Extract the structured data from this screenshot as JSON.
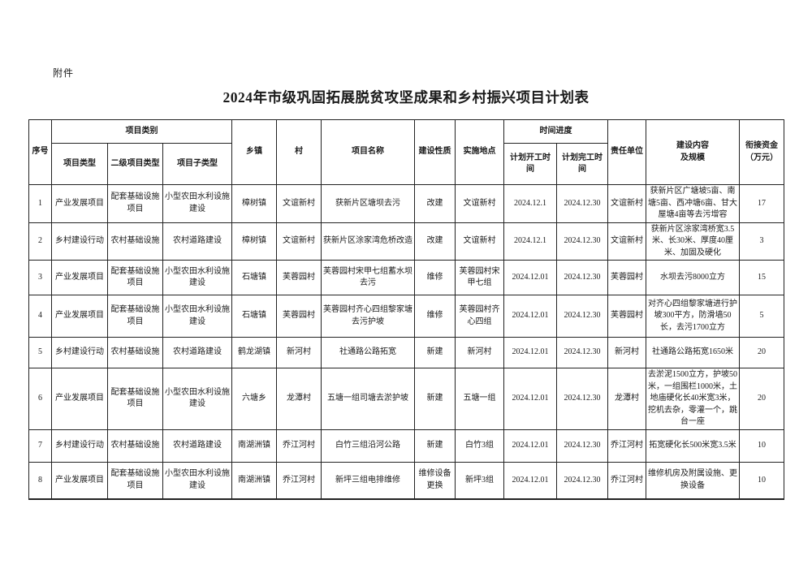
{
  "page": {
    "attachment_label": "附件",
    "title": "2024年市级巩固拓展脱贫攻坚成果和乡村振兴项目计划表"
  },
  "table": {
    "header": {
      "seq": "序号",
      "category_group": "项目类别",
      "project_type": "项目类型",
      "secondary_type": "二级项目类型",
      "sub_type": "项目子类型",
      "township": "乡镇",
      "village": "村",
      "project_name": "项目名称",
      "construction_nature": "建设性质",
      "implementation_site": "实施地点",
      "time_group": "时间进度",
      "planned_start": "计划开工时\n间",
      "planned_finish": "计划完工时\n间",
      "responsible_unit": "责任单位",
      "content_scale": "建设内容\n及规模",
      "funds": "衔接资金\n（万元）"
    },
    "rows": [
      [
        "1",
        "产业发展项目",
        "配套基础设施\n项目",
        "小型农田水利设施\n建设",
        "樟树镇",
        "文谊新村",
        "获新片区塘坝去污",
        "改建",
        "文谊新村",
        "2024.12.1",
        "2024.12.30",
        "文谊新村",
        "获新片区广塘坡5亩、南塘5亩、西冲塘6亩、甘大屋塘4亩等去污增容",
        "17"
      ],
      [
        "2",
        "乡村建设行动",
        "农村基础设施",
        "农村道路建设",
        "樟树镇",
        "文谊新村",
        "获新片区涂家湾危桥改造",
        "改建",
        "文谊新村",
        "2024.12.1",
        "2024.12.30",
        "文谊新村",
        "获新片区涂家湾桥宽3.5米、长30米、厚度40厘米、加固及硬化",
        "3"
      ],
      [
        "3",
        "产业发展项目",
        "配套基础设施\n项目",
        "小型农田水利设施\n建设",
        "石塘镇",
        "芙蓉园村",
        "芙蓉园村宋甲七组蓄水坝\n去污",
        "维修",
        "芙蓉园村宋\n甲七组",
        "2024.12.01",
        "2024.12.30",
        "芙蓉园村",
        "水坝去污8000立方",
        "15"
      ],
      [
        "4",
        "产业发展项目",
        "配套基础设施\n项目",
        "小型农田水利设施\n建设",
        "石塘镇",
        "芙蓉园村",
        "芙蓉园村齐心四组黎家塘\n去污护坡",
        "维修",
        "芙蓉园村齐\n心四组",
        "2024.12.01",
        "2024.12.30",
        "芙蓉园村",
        "对齐心四组黎家塘进行护坡300平方，防滑墙50长，去污1700立方",
        "5"
      ],
      [
        "5",
        "乡村建设行动",
        "农村基础设施",
        "农村道路建设",
        "鹤龙湖镇",
        "新河村",
        "社通路公路拓宽",
        "新建",
        "新河村",
        "2024.12.01",
        "2024.12.30",
        "新河村",
        "社通路公路拓宽1650米",
        "20"
      ],
      [
        "6",
        "产业发展项目",
        "配套基础设施\n项目",
        "小型农田水利设施\n建设",
        "六塘乡",
        "龙潭村",
        "五塘一组司塘去淤护坡",
        "新建",
        "五塘一组",
        "2024.12.01",
        "2024.12.30",
        "龙潭村",
        "去淤泥1500立方，护坡50米，一组围栏1000米，土地庙硬化长40米宽3米，挖机去杂，零灌一个，跳台一座",
        "20"
      ],
      [
        "7",
        "乡村建设行动",
        "农村基础设施",
        "农村道路建设",
        "南湖洲镇",
        "乔江河村",
        "白竹三组沿河公路",
        "新建",
        "白竹3组",
        "2024.12.01",
        "2024.12.30",
        "乔江河村",
        "拓宽硬化长500米宽3.5米",
        "10"
      ],
      [
        "8",
        "产业发展项目",
        "配套基础设施\n项目",
        "小型农田水利设施\n建设",
        "南湖洲镇",
        "乔江河村",
        "新坪三组电排维修",
        "维修设备\n更换",
        "新坪3组",
        "2024.12.01",
        "2024.12.30",
        "乔江河村",
        "维修机房及附属设施、更换设备",
        "10"
      ]
    ]
  }
}
